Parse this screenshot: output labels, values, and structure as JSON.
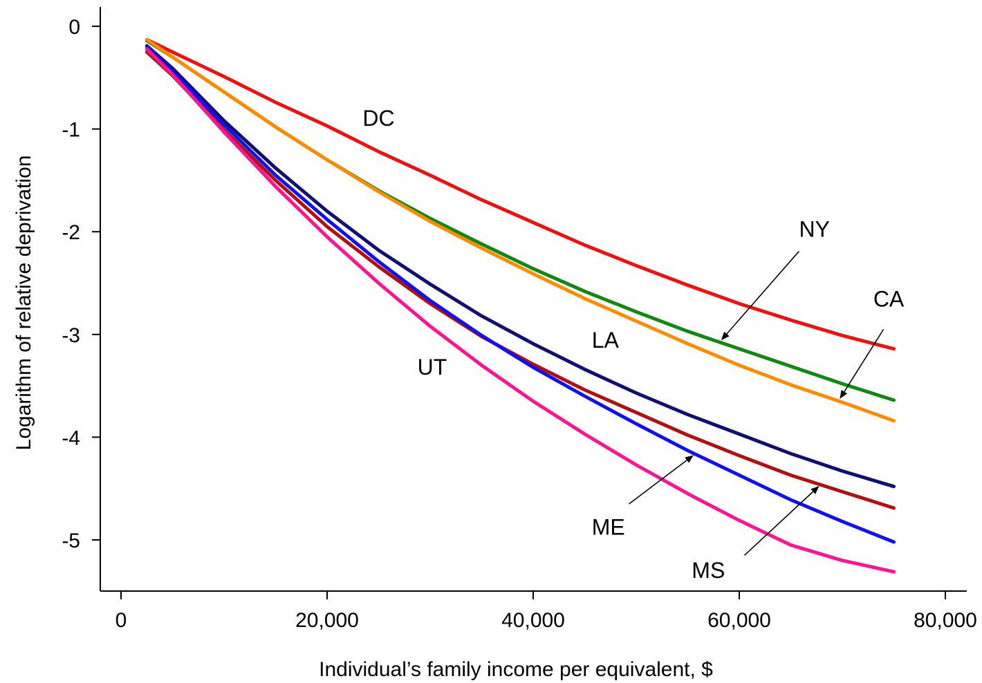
{
  "chart_data": {
    "type": "line",
    "title": "",
    "xlabel": "Individual’s family income per equivalent, $",
    "ylabel": "Logarithm of relative deprivation",
    "xlim": [
      -2500,
      82000
    ],
    "ylim": [
      -5.55,
      0.2
    ],
    "x_ticks": [
      0,
      20000,
      40000,
      60000,
      80000
    ],
    "x_tick_labels": [
      "0",
      "20,000",
      "40,000",
      "60,000",
      "80,000"
    ],
    "y_ticks": [
      0,
      -1,
      -2,
      -3,
      -4,
      -5
    ],
    "y_tick_labels": [
      "0",
      "-1",
      "-2",
      "-3",
      "-4",
      "-5"
    ],
    "grid": false,
    "legend": "none (series labeled directly on plot)",
    "x": [
      2500,
      5000,
      10000,
      15000,
      20000,
      25000,
      30000,
      35000,
      40000,
      45000,
      50000,
      55000,
      60000,
      65000,
      70000,
      75000
    ],
    "series": [
      {
        "name": "DC",
        "color": "#ee1111",
        "values": [
          -0.13,
          -0.25,
          -0.49,
          -0.74,
          -0.97,
          -1.22,
          -1.45,
          -1.69,
          -1.91,
          -2.13,
          -2.33,
          -2.52,
          -2.7,
          -2.86,
          -3.01,
          -3.14
        ]
      },
      {
        "name": "NY",
        "color": "#118811",
        "values": [
          -0.14,
          -0.3,
          -0.64,
          -0.98,
          -1.3,
          -1.6,
          -1.87,
          -2.12,
          -2.36,
          -2.58,
          -2.78,
          -2.97,
          -3.14,
          -3.31,
          -3.48,
          -3.64
        ]
      },
      {
        "name": "CA",
        "color": "#ff8c00",
        "values": [
          -0.13,
          -0.3,
          -0.64,
          -0.98,
          -1.3,
          -1.61,
          -1.9,
          -2.16,
          -2.41,
          -2.65,
          -2.87,
          -3.09,
          -3.3,
          -3.49,
          -3.66,
          -3.84
        ]
      },
      {
        "name": "LA",
        "color": "#101070",
        "values": [
          -0.19,
          -0.41,
          -0.92,
          -1.38,
          -1.8,
          -2.18,
          -2.51,
          -2.82,
          -3.09,
          -3.34,
          -3.57,
          -3.78,
          -3.97,
          -4.16,
          -4.33,
          -4.48
        ]
      },
      {
        "name": "UT",
        "color": "#b01010",
        "values": [
          -0.25,
          -0.48,
          -1.01,
          -1.5,
          -1.95,
          -2.34,
          -2.7,
          -3.02,
          -3.29,
          -3.54,
          -3.76,
          -3.98,
          -4.18,
          -4.37,
          -4.53,
          -4.69
        ]
      },
      {
        "name": "ME",
        "color": "#1111ee",
        "values": [
          -0.2,
          -0.44,
          -0.96,
          -1.45,
          -1.88,
          -2.29,
          -2.67,
          -3.01,
          -3.32,
          -3.6,
          -3.87,
          -4.13,
          -4.37,
          -4.61,
          -4.82,
          -5.02
        ]
      },
      {
        "name": "MS",
        "color": "#ff1493",
        "values": [
          -0.22,
          -0.47,
          -1.03,
          -1.56,
          -2.05,
          -2.5,
          -2.92,
          -3.3,
          -3.65,
          -3.97,
          -4.27,
          -4.55,
          -4.81,
          -5.05,
          -5.2,
          -5.31
        ]
      }
    ],
    "annotations": [
      {
        "text": "DC",
        "x": 25000,
        "y": -0.97,
        "arrow": false
      },
      {
        "text": "NY",
        "x": 67300,
        "y": -2.05,
        "arrow": true,
        "arrow_from": [
          65800,
          -2.19
        ],
        "arrow_to": [
          58300,
          -3.05
        ]
      },
      {
        "text": "CA",
        "x": 74500,
        "y": -2.73,
        "arrow": true,
        "arrow_from": [
          74000,
          -2.95
        ],
        "arrow_to": [
          69800,
          -3.62
        ]
      },
      {
        "text": "LA",
        "x": 47000,
        "y": -3.13,
        "arrow": false
      },
      {
        "text": "UT",
        "x": 30200,
        "y": -3.39,
        "arrow": false
      },
      {
        "text": "ME",
        "x": 47300,
        "y": -4.95,
        "arrow": true,
        "arrow_from": [
          49300,
          -4.65
        ],
        "arrow_to": [
          55500,
          -4.18
        ]
      },
      {
        "text": "MS",
        "x": 57000,
        "y": -5.37,
        "arrow": true,
        "arrow_from": [
          60500,
          -5.15
        ],
        "arrow_to": [
          67700,
          -4.48
        ]
      }
    ]
  }
}
